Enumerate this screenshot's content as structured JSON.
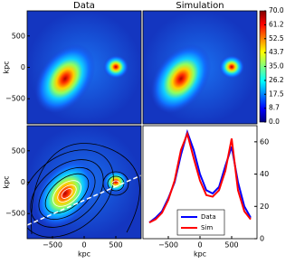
{
  "chart_data": [
    {
      "type": "heatmap",
      "title": "Data",
      "ylabel": "kpc",
      "xlim": [
        -900,
        900
      ],
      "ylim": [
        -900,
        900
      ],
      "yticks": [
        {
          "value": -500,
          "label": "−500"
        },
        0,
        500
      ]
    },
    {
      "type": "heatmap",
      "title": "Simulation",
      "xlim": [
        -900,
        900
      ],
      "ylim": [
        -900,
        900
      ],
      "colorbar": {
        "lim": [
          0,
          70
        ],
        "ticks": [
          {
            "value": 0,
            "label": "0.0"
          },
          8.7,
          17.5,
          26.2,
          {
            "value": 35,
            "label": "35.0"
          },
          43.7,
          52.5,
          61.2,
          {
            "value": 70,
            "label": "70.0"
          }
        ]
      }
    },
    {
      "type": "heatmap",
      "xlabel": "kpc",
      "ylabel": "kpc",
      "xlim": [
        -900,
        900
      ],
      "ylim": [
        -900,
        900
      ],
      "xticks": [
        {
          "value": -500,
          "label": "−500"
        },
        0,
        500
      ],
      "yticks": [
        {
          "value": -500,
          "label": "−500"
        },
        0,
        500
      ]
    },
    {
      "type": "line",
      "xlabel": "kpc",
      "xlim": [
        -900,
        900
      ],
      "ylim": [
        0,
        70
      ],
      "xticks": [
        {
          "value": -500,
          "label": "−500"
        },
        0,
        500
      ],
      "yticks": [
        0,
        20,
        40,
        60
      ],
      "legend": "lower center",
      "x": [
        -800,
        -700,
        -600,
        -500,
        -400,
        -300,
        -200,
        -100,
        0,
        100,
        200,
        300,
        400,
        500,
        600,
        700,
        800
      ],
      "series": [
        {
          "name": "Data",
          "color": "#0000ff",
          "values": [
            10,
            13,
            17,
            25,
            35,
            52,
            66,
            55,
            40,
            30,
            28,
            32,
            45,
            57,
            35,
            20,
            13
          ]
        },
        {
          "name": "Sim",
          "color": "#ff0000",
          "values": [
            10,
            12,
            16,
            24,
            36,
            55,
            65,
            50,
            36,
            27,
            26,
            30,
            42,
            62,
            30,
            17,
            12
          ]
        }
      ]
    }
  ]
}
